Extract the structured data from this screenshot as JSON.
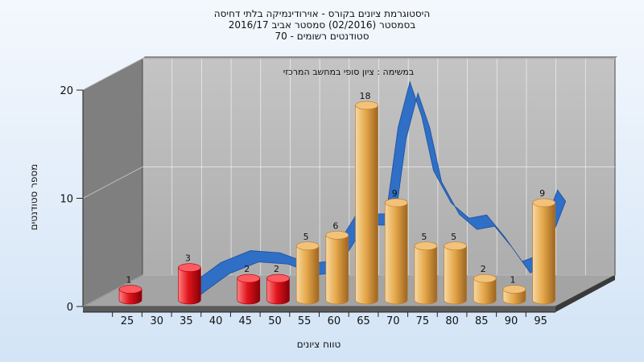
{
  "chart_data": {
    "type": "bar",
    "title_lines": [
      "היסטוגרמת ציונים בקורס - אוירודינמיקה בלתי דחיסה",
      "בסמסטר  (02/2016)  סמסטר אביב 2016/17",
      "סטודנטים רשומים - 70"
    ],
    "annotation": "במשימה : ציון סופי במחשב המרכזי",
    "xlabel": "טווח ציונים",
    "ylabel": "מספר סטודנטים",
    "x_ticks": [
      "25",
      "30",
      "35",
      "40",
      "45",
      "50",
      "55",
      "60",
      "65",
      "70",
      "75",
      "80",
      "85",
      "90",
      "95"
    ],
    "y_ticks": [
      0,
      10,
      20
    ],
    "ylim": [
      0,
      20
    ],
    "bars": [
      {
        "bin": 25,
        "value": 1,
        "group": "fail"
      },
      {
        "bin": 35,
        "value": 3,
        "group": "fail"
      },
      {
        "bin": 45,
        "value": 2,
        "group": "fail"
      },
      {
        "bin": 50,
        "value": 2,
        "group": "fail"
      },
      {
        "bin": 55,
        "value": 5,
        "group": "pass"
      },
      {
        "bin": 60,
        "value": 6,
        "group": "pass"
      },
      {
        "bin": 65,
        "value": 18,
        "group": "pass"
      },
      {
        "bin": 70,
        "value": 9,
        "group": "pass"
      },
      {
        "bin": 75,
        "value": 5,
        "group": "pass"
      },
      {
        "bin": 80,
        "value": 5,
        "group": "pass"
      },
      {
        "bin": 85,
        "value": 2,
        "group": "pass"
      },
      {
        "bin": 90,
        "value": 1,
        "group": "pass"
      },
      {
        "bin": 95,
        "value": 9,
        "group": "pass"
      }
    ],
    "trend_curve": [
      {
        "x": 31,
        "y": 0.5
      },
      {
        "x": 36,
        "y": 2.5
      },
      {
        "x": 41,
        "y": 3.6
      },
      {
        "x": 46,
        "y": 3.4
      },
      {
        "x": 51,
        "y": 2.4
      },
      {
        "x": 54,
        "y": 2.6
      },
      {
        "x": 59,
        "y": 7.0
      },
      {
        "x": 64,
        "y": 7.0
      },
      {
        "x": 66,
        "y": 15.0
      },
      {
        "x": 68,
        "y": 19.2
      },
      {
        "x": 70,
        "y": 16.0
      },
      {
        "x": 72,
        "y": 11.0
      },
      {
        "x": 75,
        "y": 8.0
      },
      {
        "x": 78,
        "y": 6.6
      },
      {
        "x": 81,
        "y": 6.9
      },
      {
        "x": 84,
        "y": 4.9
      },
      {
        "x": 87,
        "y": 2.6
      },
      {
        "x": 89,
        "y": 3.0
      },
      {
        "x": 91,
        "y": 6.4
      },
      {
        "x": 93,
        "y": 9.2
      }
    ],
    "colors": {
      "fail": "#e0141c",
      "pass": "#e6a84b",
      "trend": "#2f6fc6",
      "back_wall": "#b7b7b7",
      "side_wall": "#7f7f7f",
      "floor": "#a4a4a4",
      "grid": "#ffffff"
    },
    "grid": true,
    "legend": "none"
  }
}
